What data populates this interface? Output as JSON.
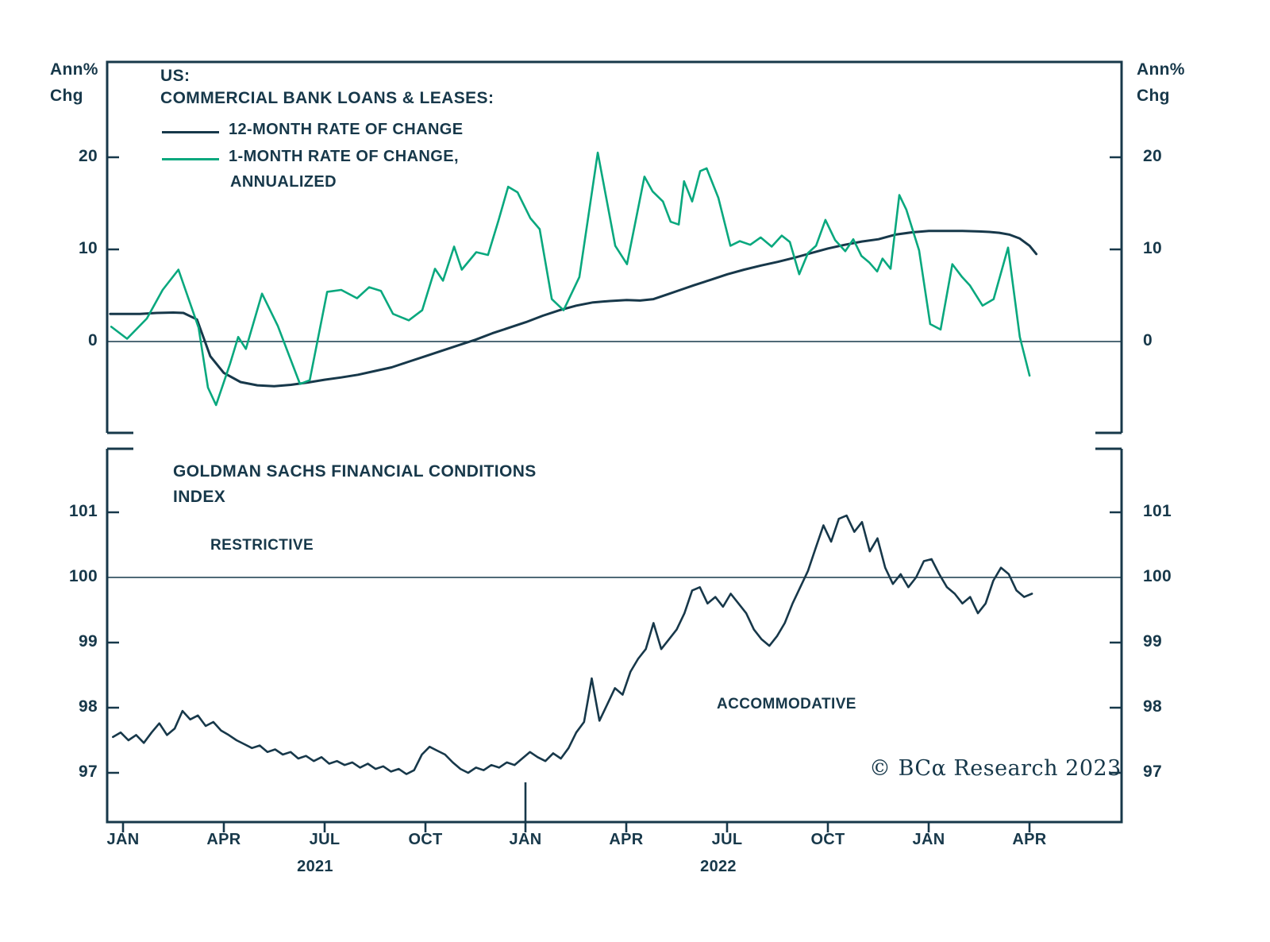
{
  "colors": {
    "ink": "#17384a",
    "green": "#09a87e"
  },
  "top_panel": {
    "axis_label_left": [
      "Ann%",
      "Chg"
    ],
    "axis_label_right": [
      "Ann%",
      "Chg"
    ],
    "y_ticks": [
      "20",
      "10",
      "0"
    ],
    "title": [
      "US:",
      "COMMERCIAL BANK LOANS & LEASES:"
    ],
    "legend": [
      {
        "label": "12-MONTH RATE OF CHANGE"
      },
      {
        "label": "1-MONTH RATE OF CHANGE,",
        "label2": "ANNUALIZED"
      }
    ]
  },
  "bottom_panel": {
    "title": [
      "GOLDMAN SACHS FINANCIAL CONDITIONS",
      "INDEX"
    ],
    "y_ticks": [
      "101",
      "100",
      "99",
      "98",
      "97"
    ],
    "zone_labels": {
      "restrictive": "RESTRICTIVE",
      "accommodative": "ACCOMMODATIVE"
    },
    "credit": "© BCα Research 2023"
  },
  "x_axis": {
    "month_labels": [
      "JAN",
      "APR",
      "JUL",
      "OCT",
      "JAN",
      "APR",
      "JUL",
      "OCT",
      "JAN",
      "APR"
    ],
    "year_labels": [
      "2021",
      "2022"
    ]
  },
  "chart_data": [
    {
      "type": "line",
      "title": "US: Commercial Bank Loans & Leases",
      "x_unit": "months since Jan 2021",
      "x_range": [
        -0.4,
        27.3
      ],
      "ylabel": "Ann% Chg",
      "ylim": [
        -10,
        30
      ],
      "y_ticks": [
        0,
        10,
        20
      ],
      "zero_line": true,
      "legend_position": "top-left",
      "series": [
        {
          "name": "12-month rate of change",
          "color_key": "ink",
          "points": [
            [
              -0.38,
              3.0
            ],
            [
              0,
              3.0
            ],
            [
              0.5,
              3.0
            ],
            [
              1,
              3.1
            ],
            [
              1.5,
              3.15
            ],
            [
              1.8,
              3.1
            ],
            [
              2.2,
              2.4
            ],
            [
              2.6,
              -1.6
            ],
            [
              3,
              -3.4
            ],
            [
              3.5,
              -4.4
            ],
            [
              4,
              -4.75
            ],
            [
              4.5,
              -4.85
            ],
            [
              5,
              -4.7
            ],
            [
              5.5,
              -4.45
            ],
            [
              6,
              -4.15
            ],
            [
              6.5,
              -3.9
            ],
            [
              7,
              -3.6
            ],
            [
              7.5,
              -3.2
            ],
            [
              8,
              -2.8
            ],
            [
              8.5,
              -2.2
            ],
            [
              9,
              -1.6
            ],
            [
              9.5,
              -1.0
            ],
            [
              10,
              -0.4
            ],
            [
              10.5,
              0.2
            ],
            [
              11,
              0.9
            ],
            [
              11.5,
              1.5
            ],
            [
              12,
              2.1
            ],
            [
              12.5,
              2.8
            ],
            [
              13,
              3.4
            ],
            [
              13.5,
              3.9
            ],
            [
              14,
              4.25
            ],
            [
              14.5,
              4.4
            ],
            [
              15,
              4.5
            ],
            [
              15.4,
              4.45
            ],
            [
              15.8,
              4.6
            ],
            [
              16.2,
              5.1
            ],
            [
              16.6,
              5.6
            ],
            [
              17,
              6.1
            ],
            [
              17.5,
              6.7
            ],
            [
              18,
              7.3
            ],
            [
              18.5,
              7.8
            ],
            [
              19,
              8.25
            ],
            [
              19.5,
              8.65
            ],
            [
              20,
              9.1
            ],
            [
              20.5,
              9.6
            ],
            [
              21,
              10.1
            ],
            [
              21.5,
              10.5
            ],
            [
              22,
              10.85
            ],
            [
              22.5,
              11.1
            ],
            [
              23,
              11.6
            ],
            [
              23.5,
              11.85
            ],
            [
              24,
              12.0
            ],
            [
              24.5,
              12.0
            ],
            [
              25,
              12.0
            ],
            [
              25.5,
              11.95
            ],
            [
              25.8,
              11.9
            ],
            [
              26.1,
              11.8
            ],
            [
              26.4,
              11.6
            ],
            [
              26.7,
              11.2
            ],
            [
              27,
              10.4
            ],
            [
              27.2,
              9.5
            ]
          ]
        },
        {
          "name": "1-month rate of change, annualized",
          "color_key": "green",
          "points": [
            [
              -0.35,
              1.6
            ],
            [
              0.12,
              0.3
            ],
            [
              0.71,
              2.5
            ],
            [
              1.18,
              5.6
            ],
            [
              1.65,
              7.8
            ],
            [
              2.25,
              1.5
            ],
            [
              2.53,
              -5.0
            ],
            [
              2.77,
              -6.9
            ],
            [
              3.19,
              -2.4
            ],
            [
              3.43,
              0.5
            ],
            [
              3.66,
              -0.8
            ],
            [
              4.14,
              5.2
            ],
            [
              4.61,
              1.7
            ],
            [
              5.27,
              -4.6
            ],
            [
              5.56,
              -4.2
            ],
            [
              6.08,
              5.4
            ],
            [
              6.5,
              5.6
            ],
            [
              6.97,
              4.7
            ],
            [
              7.33,
              5.9
            ],
            [
              7.68,
              5.5
            ],
            [
              8.04,
              3.0
            ],
            [
              8.51,
              2.3
            ],
            [
              8.91,
              3.4
            ],
            [
              9.29,
              7.9
            ],
            [
              9.53,
              6.6
            ],
            [
              9.86,
              10.3
            ],
            [
              10.09,
              7.8
            ],
            [
              10.52,
              9.7
            ],
            [
              10.87,
              9.4
            ],
            [
              11.18,
              13.1
            ],
            [
              11.47,
              16.8
            ],
            [
              11.75,
              16.2
            ],
            [
              12.13,
              13.4
            ],
            [
              12.41,
              12.2
            ],
            [
              12.77,
              4.6
            ],
            [
              13.12,
              3.4
            ],
            [
              13.59,
              7.0
            ],
            [
              14.14,
              20.5
            ],
            [
              14.66,
              10.4
            ],
            [
              15.01,
              8.4
            ],
            [
              15.53,
              17.9
            ],
            [
              15.77,
              16.3
            ],
            [
              16.08,
              15.2
            ],
            [
              16.31,
              13.0
            ],
            [
              16.55,
              12.7
            ],
            [
              16.71,
              17.4
            ],
            [
              16.95,
              15.2
            ],
            [
              17.19,
              18.5
            ],
            [
              17.38,
              18.8
            ],
            [
              17.73,
              15.6
            ],
            [
              18.09,
              10.4
            ],
            [
              18.37,
              10.9
            ],
            [
              18.68,
              10.5
            ],
            [
              18.99,
              11.3
            ],
            [
              19.32,
              10.3
            ],
            [
              19.62,
              11.5
            ],
            [
              19.86,
              10.8
            ],
            [
              20.14,
              7.3
            ],
            [
              20.4,
              9.6
            ],
            [
              20.64,
              10.4
            ],
            [
              20.92,
              13.2
            ],
            [
              21.21,
              11.0
            ],
            [
              21.51,
              9.8
            ],
            [
              21.75,
              11.1
            ],
            [
              21.99,
              9.3
            ],
            [
              22.22,
              8.6
            ],
            [
              22.46,
              7.6
            ],
            [
              22.62,
              9.0
            ],
            [
              22.86,
              7.9
            ],
            [
              23.12,
              15.9
            ],
            [
              23.33,
              14.3
            ],
            [
              23.71,
              9.9
            ],
            [
              24.04,
              1.9
            ],
            [
              24.35,
              1.3
            ],
            [
              24.7,
              8.4
            ],
            [
              24.99,
              7.0
            ],
            [
              25.22,
              6.1
            ],
            [
              25.6,
              3.9
            ],
            [
              25.93,
              4.6
            ],
            [
              26.36,
              10.2
            ],
            [
              26.71,
              0.5
            ],
            [
              27.0,
              -3.7
            ]
          ]
        }
      ]
    },
    {
      "type": "line",
      "title": "Goldman Sachs Financial Conditions Index",
      "x_unit": "months since Jan 2021",
      "ylim": [
        96.2,
        102
      ],
      "y_ticks": [
        97,
        98,
        99,
        100,
        101
      ],
      "reference_line": 100,
      "zones": {
        "above_100": "RESTRICTIVE",
        "below_100": "ACCOMMODATIVE"
      },
      "series": [
        {
          "name": "GS Financial Conditions Index",
          "color_key": "ink",
          "start_month": -0.3,
          "step_months": 0.23,
          "values": [
            97.55,
            97.62,
            97.5,
            97.58,
            97.46,
            97.62,
            97.76,
            97.58,
            97.68,
            97.95,
            97.82,
            97.88,
            97.72,
            97.78,
            97.65,
            97.58,
            97.5,
            97.44,
            97.38,
            97.42,
            97.32,
            97.36,
            97.28,
            97.32,
            97.22,
            97.26,
            97.18,
            97.24,
            97.14,
            97.18,
            97.12,
            97.16,
            97.08,
            97.14,
            97.06,
            97.1,
            97.02,
            97.06,
            96.98,
            97.04,
            97.28,
            97.4,
            97.34,
            97.28,
            97.16,
            97.06,
            97.0,
            97.08,
            97.04,
            97.12,
            97.08,
            97.16,
            97.12,
            97.22,
            97.32,
            97.24,
            97.18,
            97.3,
            97.22,
            97.38,
            97.62,
            97.78,
            98.45,
            97.8,
            98.05,
            98.3,
            98.2,
            98.55,
            98.75,
            98.9,
            99.3,
            98.9,
            99.05,
            99.2,
            99.45,
            99.8,
            99.85,
            99.6,
            99.7,
            99.55,
            99.75,
            99.6,
            99.45,
            99.2,
            99.05,
            98.95,
            99.1,
            99.3,
            99.6,
            99.85,
            100.1,
            100.45,
            100.8,
            100.55,
            100.9,
            100.95,
            100.7,
            100.85,
            100.4,
            100.6,
            100.15,
            99.9,
            100.05,
            99.85,
            100.0,
            100.25,
            100.28,
            100.05,
            99.85,
            99.75,
            99.6,
            99.7,
            99.45,
            99.6,
            99.95,
            100.15,
            100.05,
            99.8,
            99.7,
            99.75
          ]
        }
      ]
    }
  ]
}
